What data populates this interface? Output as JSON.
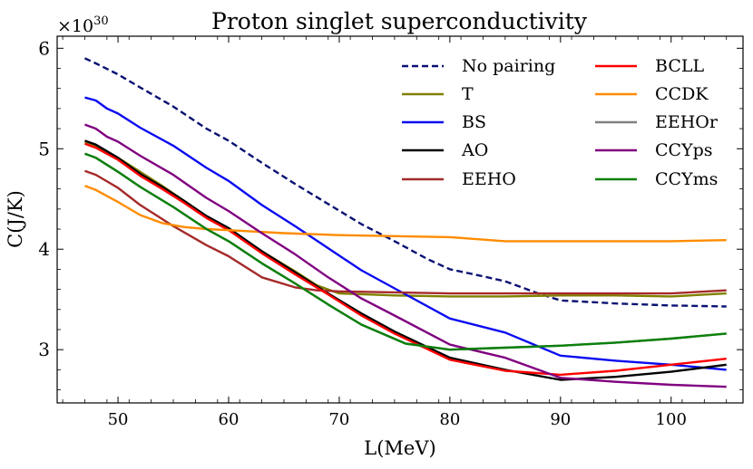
{
  "chart_data": {
    "type": "line",
    "title": "Proton singlet superconductivity",
    "xlabel": "L(MeV)",
    "ylabel": "C(J/K)",
    "y_scale_label": "×10",
    "y_scale_exponent": "30",
    "xlim": [
      44.5,
      106.5
    ],
    "ylim": [
      2.47,
      6.12
    ],
    "x_ticks": [
      50,
      60,
      70,
      80,
      90,
      100
    ],
    "y_ticks": [
      3,
      4,
      5,
      6
    ],
    "legend_position": "top-right",
    "series": [
      {
        "name": "No pairing",
        "color": "#0a1172",
        "dash": true,
        "x": [
          47,
          48,
          50,
          52,
          55,
          58,
          60,
          63,
          66,
          69,
          72,
          75,
          78,
          80,
          83,
          85,
          88,
          90,
          95,
          100,
          105
        ],
        "y": [
          5.9,
          5.85,
          5.74,
          5.61,
          5.42,
          5.2,
          5.08,
          4.86,
          4.65,
          4.45,
          4.25,
          4.08,
          3.9,
          3.8,
          3.73,
          3.68,
          3.56,
          3.49,
          3.46,
          3.44,
          3.43
        ]
      },
      {
        "name": "T",
        "color": "#808000",
        "dash": false,
        "x": [
          47,
          48,
          50,
          52,
          54,
          56,
          58,
          60,
          63,
          66,
          68,
          70,
          75,
          80,
          85,
          90,
          95,
          100,
          105
        ],
        "y": [
          5.07,
          5.03,
          4.91,
          4.77,
          4.63,
          4.48,
          4.32,
          4.2,
          3.98,
          3.78,
          3.64,
          3.56,
          3.54,
          3.53,
          3.53,
          3.54,
          3.54,
          3.53,
          3.56
        ]
      },
      {
        "name": "BS",
        "color": "#0b0bf0",
        "dash": false,
        "x": [
          47,
          48,
          49,
          50,
          52,
          55,
          58,
          60,
          63,
          66,
          69,
          72,
          75,
          80,
          85,
          90,
          95,
          100,
          105
        ],
        "y": [
          5.51,
          5.48,
          5.4,
          5.35,
          5.21,
          5.03,
          4.81,
          4.68,
          4.44,
          4.23,
          4.01,
          3.79,
          3.61,
          3.31,
          3.17,
          2.94,
          2.89,
          2.85,
          2.8
        ]
      },
      {
        "name": "AO",
        "color": "#000000",
        "dash": false,
        "x": [
          47,
          48,
          50,
          52,
          54,
          56,
          58,
          60,
          63,
          66,
          69,
          72,
          75,
          80,
          85,
          90,
          95,
          100,
          105
        ],
        "y": [
          5.08,
          5.04,
          4.91,
          4.75,
          4.62,
          4.48,
          4.33,
          4.21,
          3.98,
          3.77,
          3.56,
          3.36,
          3.18,
          2.92,
          2.8,
          2.7,
          2.73,
          2.78,
          2.85
        ]
      },
      {
        "name": "EEHO",
        "color": "#a52a2a",
        "dash": false,
        "x": [
          47,
          48,
          50,
          52,
          55,
          58,
          60,
          63,
          66,
          68,
          70,
          75,
          80,
          85,
          90,
          95,
          100,
          105
        ],
        "y": [
          4.78,
          4.74,
          4.61,
          4.44,
          4.23,
          4.04,
          3.93,
          3.72,
          3.62,
          3.59,
          3.58,
          3.57,
          3.56,
          3.56,
          3.56,
          3.56,
          3.56,
          3.59
        ]
      },
      {
        "name": "BCLL",
        "color": "#ff0000",
        "dash": false,
        "x": [
          47,
          48,
          50,
          52,
          54,
          56,
          58,
          60,
          63,
          66,
          69,
          72,
          75,
          80,
          85,
          90,
          95,
          100,
          105
        ],
        "y": [
          5.05,
          5.01,
          4.89,
          4.73,
          4.6,
          4.46,
          4.31,
          4.19,
          3.96,
          3.75,
          3.55,
          3.34,
          3.16,
          2.9,
          2.79,
          2.75,
          2.79,
          2.85,
          2.91
        ]
      },
      {
        "name": "CCDK",
        "color": "#ff8c00",
        "dash": false,
        "x": [
          47,
          48,
          50,
          52,
          54,
          56,
          58,
          60,
          65,
          70,
          75,
          80,
          85,
          90,
          95,
          100,
          105
        ],
        "y": [
          4.63,
          4.59,
          4.47,
          4.34,
          4.26,
          4.22,
          4.2,
          4.19,
          4.16,
          4.14,
          4.13,
          4.12,
          4.08,
          4.08,
          4.08,
          4.08,
          4.09
        ]
      },
      {
        "name": "EEHOr",
        "color": "#808080",
        "dash": false,
        "x": [
          47,
          48,
          50,
          52,
          55,
          58,
          60,
          63,
          66,
          69,
          72,
          76,
          80,
          85,
          90,
          95,
          100,
          105
        ],
        "y": [
          4.95,
          4.91,
          4.77,
          4.62,
          4.42,
          4.2,
          4.08,
          3.86,
          3.66,
          3.45,
          3.25,
          3.06,
          3.0,
          3.02,
          3.04,
          3.07,
          3.11,
          3.16
        ]
      },
      {
        "name": "CCYps",
        "color": "#800080",
        "dash": false,
        "x": [
          47,
          48,
          49,
          50,
          52,
          55,
          58,
          60,
          63,
          66,
          69,
          72,
          75,
          80,
          85,
          90,
          95,
          100,
          105
        ],
        "y": [
          5.24,
          5.2,
          5.12,
          5.07,
          4.93,
          4.74,
          4.51,
          4.38,
          4.16,
          3.95,
          3.72,
          3.51,
          3.34,
          3.05,
          2.92,
          2.72,
          2.68,
          2.65,
          2.63
        ]
      },
      {
        "name": "CCYms",
        "color": "#0a800a",
        "dash": false,
        "x": [
          47,
          48,
          50,
          52,
          55,
          58,
          60,
          63,
          66,
          69,
          72,
          76,
          80,
          85,
          90,
          95,
          100,
          105
        ],
        "y": [
          4.95,
          4.91,
          4.77,
          4.62,
          4.42,
          4.2,
          4.08,
          3.86,
          3.66,
          3.45,
          3.25,
          3.06,
          3.0,
          3.02,
          3.04,
          3.07,
          3.11,
          3.16
        ]
      }
    ]
  }
}
